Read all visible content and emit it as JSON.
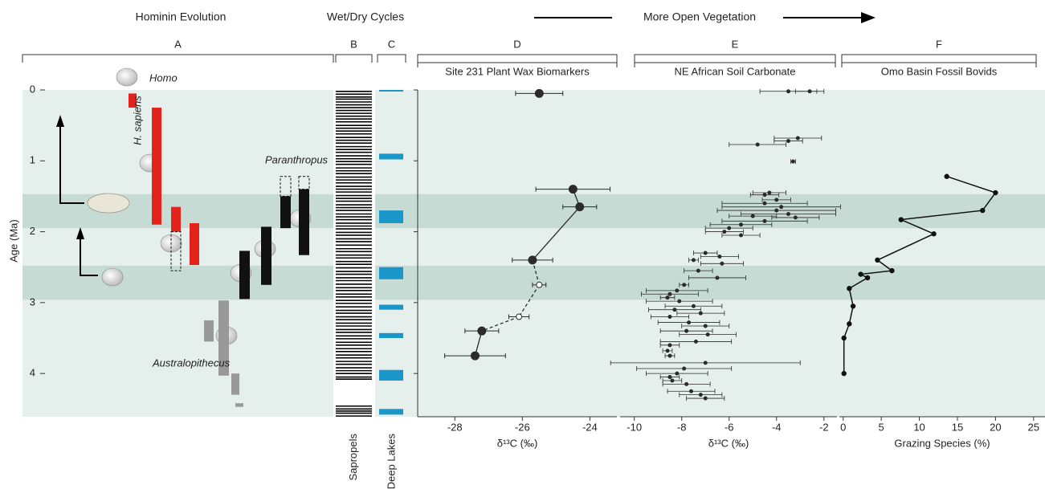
{
  "header": {
    "hominin": "Hominin Evolution",
    "cycles": "Wet/Dry Cycles",
    "vegetation": "More Open Vegetation"
  },
  "chart_data": [
    {
      "type": "range",
      "letter": "A",
      "ylabel": "Age (Ma)",
      "ylim": [
        0,
        4.61
      ],
      "yticks": [
        0,
        1,
        2,
        3,
        4
      ],
      "shaded_periods": [
        [
          1.47,
          1.95
        ],
        [
          2.48,
          2.96
        ]
      ],
      "species_label": "H. sapiens",
      "groups": [
        {
          "name": "Homo",
          "color": "#e3231b",
          "ranges": [
            [
              0.05,
              0.25
            ],
            [
              0.25,
              1.9
            ],
            [
              1.65,
              2.0
            ],
            [
              1.88,
              2.47
            ]
          ],
          "extensions": [
            null,
            null,
            [
              2.0,
              2.55
            ],
            null
          ]
        },
        {
          "name": "Paranthropus",
          "color": "#111111",
          "ranges": [
            [
              2.27,
              2.95
            ],
            [
              1.93,
              2.75
            ],
            [
              1.5,
              1.95
            ],
            [
              1.4,
              2.33
            ]
          ],
          "extensions": [
            null,
            null,
            [
              1.22,
              1.5
            ],
            [
              1.22,
              1.4
            ]
          ]
        },
        {
          "name": "Australopithecus",
          "color": "#999999",
          "ranges": [
            [
              3.25,
              3.55
            ],
            [
              2.97,
              4.03
            ],
            [
              4.0,
              4.3
            ],
            [
              4.42,
              4.47
            ]
          ],
          "extensions": [
            null,
            null,
            null,
            null
          ]
        }
      ]
    },
    {
      "type": "event",
      "letter": "B",
      "label": "Sapropels",
      "values": [
        0.02,
        0.06,
        0.1,
        0.13,
        0.17,
        0.21,
        0.25,
        0.29,
        0.33,
        0.37,
        0.41,
        0.45,
        0.5,
        0.54,
        0.58,
        0.62,
        0.67,
        0.71,
        0.75,
        0.8,
        0.84,
        0.88,
        0.93,
        0.97,
        1.01,
        1.05,
        1.1,
        1.14,
        1.18,
        1.23,
        1.27,
        1.31,
        1.36,
        1.4,
        1.44,
        1.49,
        1.53,
        1.57,
        1.62,
        1.66,
        1.7,
        1.75,
        1.79,
        1.83,
        1.88,
        1.92,
        1.96,
        2.01,
        2.05,
        2.1,
        2.14,
        2.19,
        2.24,
        2.28,
        2.33,
        2.37,
        2.42,
        2.46,
        2.51,
        2.56,
        2.6,
        2.65,
        2.69,
        2.74,
        2.79,
        2.83,
        2.88,
        2.92,
        2.97,
        3.01,
        3.06,
        3.11,
        3.15,
        3.2,
        3.24,
        3.29,
        3.33,
        3.38,
        3.42,
        3.47,
        3.51,
        3.56,
        3.6,
        3.65,
        3.69,
        3.74,
        3.78,
        3.83,
        3.87,
        3.92,
        3.96,
        4.0,
        4.05,
        4.08,
        4.46,
        4.5,
        4.53,
        4.56,
        4.6
      ]
    },
    {
      "type": "span",
      "letter": "C",
      "label": "Deep Lakes",
      "color": "#1a96c8",
      "ranges": [
        [
          0,
          0.02
        ],
        [
          0.9,
          0.98
        ],
        [
          1.7,
          1.88
        ],
        [
          2.5,
          2.67
        ],
        [
          3.03,
          3.1
        ],
        [
          3.43,
          3.5
        ],
        [
          3.95,
          4.1
        ],
        [
          4.5,
          4.58
        ]
      ]
    },
    {
      "type": "scatter",
      "letter": "D",
      "title": "Site 231 Plant Wax Biomarkers",
      "xlabel": "δ¹³C (‰)",
      "xlim": [
        -29.1,
        -23.2
      ],
      "xticks": [
        -28,
        -26,
        -24
      ],
      "color": "#2b2b2b",
      "ages": [
        0.05,
        1.4,
        1.65,
        2.4,
        2.75,
        3.2,
        3.4,
        3.75
      ],
      "values": [
        -25.5,
        -24.5,
        -24.3,
        -25.7,
        -25.5,
        -26.1,
        -27.2,
        -27.4
      ],
      "errors": [
        0.7,
        1.1,
        0.5,
        0.6,
        0.2,
        0.3,
        0.5,
        0.9
      ],
      "open": [
        false,
        false,
        false,
        false,
        true,
        true,
        false,
        false
      ],
      "connected": [
        false,
        false,
        true,
        true,
        true,
        true,
        true,
        true
      ]
    },
    {
      "type": "scatter",
      "letter": "E",
      "title": "NE African Soil Carbonate",
      "xlabel": "δ¹³C (‰)",
      "xlim": [
        -10.6,
        -1.45
      ],
      "xticks": [
        -10,
        -8,
        -6,
        -4,
        -2
      ],
      "color": "#2b2b2b",
      "ages": [
        0.02,
        0.02,
        0.68,
        0.72,
        0.77,
        1.01,
        1.45,
        1.48,
        1.55,
        1.6,
        1.65,
        1.7,
        1.75,
        1.78,
        1.8,
        1.85,
        1.9,
        1.95,
        2.0,
        2.05,
        2.3,
        2.35,
        2.4,
        2.45,
        2.55,
        2.65,
        2.75,
        2.83,
        2.88,
        2.93,
        2.98,
        3.05,
        3.1,
        3.15,
        3.2,
        3.28,
        3.33,
        3.4,
        3.45,
        3.55,
        3.6,
        3.68,
        3.75,
        3.85,
        3.93,
        4.0,
        4.05,
        4.1,
        4.15,
        4.25,
        4.3,
        4.35
      ],
      "values": [
        -3.5,
        -2.6,
        -3.1,
        -3.5,
        -4.8,
        -3.3,
        -4.3,
        -4.5,
        -4.0,
        -4.5,
        -3.8,
        -4.0,
        -3.5,
        -5.0,
        -3.2,
        -4.5,
        -5.5,
        -6.0,
        -6.2,
        -5.5,
        -7.0,
        -6.4,
        -7.5,
        -6.3,
        -7.3,
        -6.5,
        -7.9,
        -8.2,
        -8.5,
        -8.6,
        -8.1,
        -7.5,
        -8.3,
        -7.2,
        -8.5,
        -7.7,
        -7.0,
        -7.8,
        -6.9,
        -7.4,
        -8.5,
        -8.6,
        -8.5,
        -7.0,
        -7.9,
        -8.2,
        -8.5,
        -8.4,
        -7.8,
        -7.6,
        -7.2,
        -7.0
      ],
      "errors": [
        1.2,
        0.6,
        1.0,
        0.6,
        1.2,
        0.1,
        0.7,
        0.6,
        0.6,
        1.8,
        2.5,
        2.5,
        2.0,
        1.0,
        1.0,
        1.8,
        1.3,
        1.0,
        0.8,
        0.8,
        0.5,
        0.8,
        0.2,
        0.9,
        0.6,
        1.2,
        0.2,
        1.3,
        1.2,
        0.3,
        1.4,
        1.2,
        1.1,
        1.0,
        0.8,
        1.3,
        1.0,
        1.1,
        1.2,
        1.5,
        0.4,
        0.2,
        0.2,
        4.0,
        2.0,
        1.3,
        0.4,
        0.4,
        1.0,
        1.0,
        0.9,
        0.8
      ]
    },
    {
      "type": "line",
      "letter": "F",
      "title": "Omo Basin Fossil Bovids",
      "xlabel": "Grazing Species (%)",
      "xlim": [
        -0.5,
        26.5
      ],
      "xticks": [
        0,
        5,
        10,
        15,
        20,
        25
      ],
      "color": "#111111",
      "ages": [
        1.22,
        1.45,
        1.7,
        1.83,
        2.03,
        2.4,
        2.55,
        2.6,
        2.65,
        2.8,
        3.05,
        3.3,
        3.5,
        4.0
      ],
      "values": [
        13.6,
        20,
        18.3,
        7.6,
        11.9,
        4.5,
        6.4,
        2.3,
        3.2,
        0.8,
        1.3,
        0.8,
        0.1,
        0.1
      ]
    }
  ]
}
